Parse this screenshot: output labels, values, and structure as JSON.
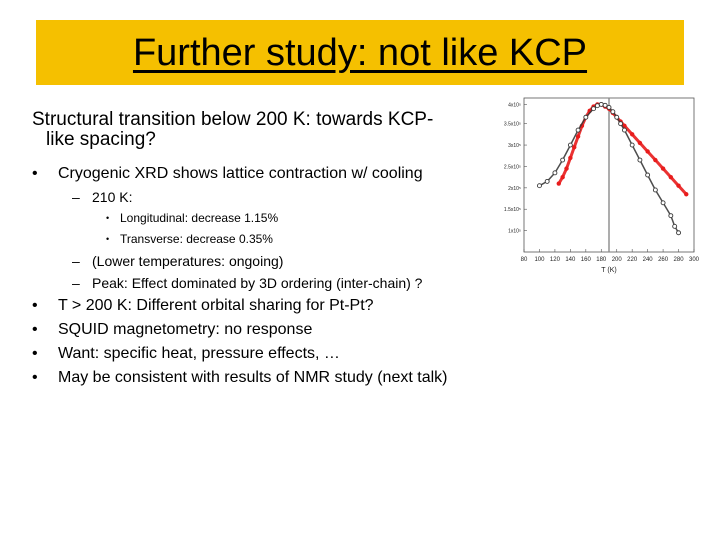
{
  "slide": {
    "title": "Further study: not like KCP",
    "lead_line1": "Structural transition below 200 K: towards KCP-",
    "lead_line2": "like spacing?",
    "bullet_xrd": "Cryogenic XRD shows lattice contraction w/ cooling",
    "sub_210k": "210 K:",
    "sub_longitudinal": "Longitudinal: decrease 1.15%",
    "sub_transverse": "Transverse: decrease   0.35%",
    "sub_lower_temps": "(Lower temperatures: ongoing)",
    "sub_peak": "Peak:  Effect dominated by 3D ordering (inter-chain) ?",
    "bullet_orbital": "T > 200 K: Different orbital sharing for Pt-Pt?",
    "bullet_squid": "SQUID magnetometry: no response",
    "bullet_want": "Want: specific heat, pressure effects, …",
    "bullet_nmr": "May be consistent with results of NMR study (next talk)",
    "markers": {
      "bullet": "•",
      "dash": "–"
    }
  },
  "colors": {
    "title_band": "#f5c000",
    "series_red": "#e81c1c",
    "series_black": "#3a3a3a",
    "vline": "#8a8a8a"
  },
  "chart_data": {
    "type": "scatter",
    "xlabel": "T (K)",
    "ylabel": "",
    "xlim": [
      80,
      300
    ],
    "ylim": [
      0,
      3.6
    ],
    "x_ticks": [
      "80",
      "100",
      "120",
      "140",
      "160",
      "180",
      "200",
      "220",
      "240",
      "260",
      "280",
      "300"
    ],
    "y_ticks": [
      {
        "value": 0.5,
        "label": "1x10⁵"
      },
      {
        "value": 1.0,
        "label": "1.5x10⁵"
      },
      {
        "value": 1.5,
        "label": "2x10⁵"
      },
      {
        "value": 2.0,
        "label": "2.5x10⁵"
      },
      {
        "value": 2.5,
        "label": "3x10⁵"
      },
      {
        "value": 3.0,
        "label": "3.5x10⁵"
      },
      {
        "value": 3.45,
        "label": "4x10⁵"
      }
    ],
    "vline_x": 190,
    "series": [
      {
        "color": "#e81c1c",
        "x": [
          125,
          130,
          135,
          140,
          145,
          150,
          155,
          160,
          165,
          170,
          175,
          180,
          185,
          190,
          195,
          200,
          205,
          210,
          220,
          230,
          240,
          250,
          260,
          270,
          280,
          290
        ],
        "y": [
          1.6,
          1.75,
          1.95,
          2.2,
          2.45,
          2.7,
          2.95,
          3.15,
          3.3,
          3.4,
          3.45,
          3.45,
          3.4,
          3.35,
          3.25,
          3.15,
          3.05,
          2.95,
          2.75,
          2.55,
          2.35,
          2.15,
          1.95,
          1.75,
          1.55,
          1.35
        ]
      },
      {
        "color": "#3a3a3a",
        "x": [
          100,
          110,
          120,
          130,
          140,
          150,
          160,
          170,
          175,
          180,
          185,
          190,
          195,
          200,
          205,
          210,
          220,
          230,
          240,
          250,
          260,
          270,
          275,
          280
        ],
        "y": [
          1.55,
          1.65,
          1.85,
          2.15,
          2.5,
          2.85,
          3.15,
          3.35,
          3.42,
          3.45,
          3.43,
          3.38,
          3.28,
          3.15,
          3.0,
          2.85,
          2.5,
          2.15,
          1.8,
          1.45,
          1.15,
          0.85,
          0.6,
          0.45
        ]
      }
    ]
  }
}
